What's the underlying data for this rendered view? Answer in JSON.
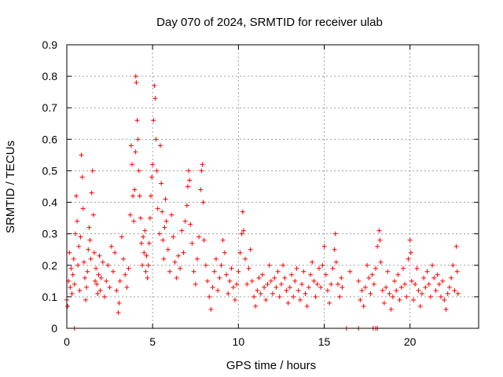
{
  "chart_data": {
    "type": "scatter",
    "title": "Day 070 of 2024, SRMTID for receiver ulab",
    "xlabel": "GPS time / hours",
    "ylabel": "SRMTID / TECUs",
    "xlim": [
      0,
      24
    ],
    "ylim": [
      0,
      0.9
    ],
    "xticks": [
      0,
      5,
      10,
      15,
      20
    ],
    "yticks": [
      0,
      0.1,
      0.2,
      0.3,
      0.4,
      0.5,
      0.6,
      0.7,
      0.8,
      0.9
    ],
    "grid": true,
    "marker": "+",
    "color": "#ff0000",
    "series": [
      {
        "name": "SRMTID",
        "points": [
          [
            0.0,
            0.09
          ],
          [
            0.05,
            0.07
          ],
          [
            0.1,
            0.15
          ],
          [
            0.15,
            0.24
          ],
          [
            0.2,
            0.13
          ],
          [
            0.25,
            0.19
          ],
          [
            0.3,
            0.11
          ],
          [
            0.35,
            0.17
          ],
          [
            0.4,
            0.22
          ],
          [
            0.45,
            0.14
          ],
          [
            0.5,
            0.3
          ],
          [
            0.55,
            0.42
          ],
          [
            0.6,
            0.34
          ],
          [
            0.65,
            0.2
          ],
          [
            0.7,
            0.26
          ],
          [
            0.75,
            0.12
          ],
          [
            0.8,
            0.29
          ],
          [
            0.85,
            0.55
          ],
          [
            0.9,
            0.48
          ],
          [
            0.95,
            0.38
          ],
          [
            1.0,
            0.21
          ],
          [
            1.05,
            0.16
          ],
          [
            1.1,
            0.09
          ],
          [
            1.15,
            0.13
          ],
          [
            1.2,
            0.18
          ],
          [
            1.25,
            0.25
          ],
          [
            1.3,
            0.32
          ],
          [
            1.35,
            0.28
          ],
          [
            1.4,
            0.22
          ],
          [
            1.45,
            0.43
          ],
          [
            1.5,
            0.5
          ],
          [
            1.55,
            0.36
          ],
          [
            1.6,
            0.24
          ],
          [
            1.65,
            0.15
          ],
          [
            1.7,
            0.19
          ],
          [
            1.75,
            0.14
          ],
          [
            1.8,
            0.11
          ],
          [
            1.85,
            0.17
          ],
          [
            1.9,
            0.23
          ],
          [
            1.95,
            0.12
          ],
          [
            2.0,
            0.16
          ],
          [
            2.1,
            0.21
          ],
          [
            2.2,
            0.1
          ],
          [
            2.3,
            0.15
          ],
          [
            2.4,
            0.2
          ],
          [
            2.5,
            0.13
          ],
          [
            2.6,
            0.26
          ],
          [
            2.7,
            0.18
          ],
          [
            2.8,
            0.24
          ],
          [
            2.9,
            0.12
          ],
          [
            3.0,
            0.05
          ],
          [
            3.05,
            0.08
          ],
          [
            3.1,
            0.15
          ],
          [
            3.2,
            0.29
          ],
          [
            3.3,
            0.22
          ],
          [
            3.4,
            0.17
          ],
          [
            3.5,
            0.13
          ],
          [
            3.6,
            0.19
          ],
          [
            3.7,
            0.36
          ],
          [
            3.75,
            0.58
          ],
          [
            3.8,
            0.52
          ],
          [
            3.85,
            0.42
          ],
          [
            3.9,
            0.34
          ],
          [
            3.95,
            0.44
          ],
          [
            4.0,
            0.56
          ],
          [
            4.02,
            0.8
          ],
          [
            4.05,
            0.78
          ],
          [
            4.1,
            0.66
          ],
          [
            4.15,
            0.6
          ],
          [
            4.2,
            0.5
          ],
          [
            4.25,
            0.42
          ],
          [
            4.3,
            0.35
          ],
          [
            4.35,
            0.27
          ],
          [
            4.4,
            0.2
          ],
          [
            4.45,
            0.29
          ],
          [
            4.5,
            0.24
          ],
          [
            4.55,
            0.31
          ],
          [
            4.6,
            0.18
          ],
          [
            4.65,
            0.23
          ],
          [
            4.7,
            0.16
          ],
          [
            4.75,
            0.2
          ],
          [
            4.8,
            0.27
          ],
          [
            4.85,
            0.35
          ],
          [
            4.9,
            0.42
          ],
          [
            4.95,
            0.48
          ],
          [
            5.0,
            0.52
          ],
          [
            5.05,
            0.66
          ],
          [
            5.1,
            0.77
          ],
          [
            5.15,
            0.73
          ],
          [
            5.2,
            0.6
          ],
          [
            5.25,
            0.5
          ],
          [
            5.3,
            0.38
          ],
          [
            5.4,
            0.3
          ],
          [
            5.45,
            0.58
          ],
          [
            5.5,
            0.46
          ],
          [
            5.55,
            0.37
          ],
          [
            5.6,
            0.28
          ],
          [
            5.65,
            0.22
          ],
          [
            5.7,
            0.32
          ],
          [
            5.75,
            0.41
          ],
          [
            5.8,
            0.34
          ],
          [
            5.9,
            0.25
          ],
          [
            6.0,
            0.18
          ],
          [
            6.1,
            0.36
          ],
          [
            6.2,
            0.29
          ],
          [
            6.3,
            0.21
          ],
          [
            6.4,
            0.16
          ],
          [
            6.5,
            0.23
          ],
          [
            6.6,
            0.19
          ],
          [
            6.7,
            0.31
          ],
          [
            6.8,
            0.24
          ],
          [
            6.9,
            0.34
          ],
          [
            7.0,
            0.39
          ],
          [
            7.05,
            0.45
          ],
          [
            7.1,
            0.5
          ],
          [
            7.15,
            0.47
          ],
          [
            7.2,
            0.33
          ],
          [
            7.3,
            0.27
          ],
          [
            7.4,
            0.18
          ],
          [
            7.5,
            0.14
          ],
          [
            7.6,
            0.22
          ],
          [
            7.7,
            0.29
          ],
          [
            7.8,
            0.44
          ],
          [
            7.85,
            0.5
          ],
          [
            7.9,
            0.52
          ],
          [
            7.95,
            0.4
          ],
          [
            8.0,
            0.28
          ],
          [
            8.1,
            0.2
          ],
          [
            8.2,
            0.15
          ],
          [
            8.3,
            0.1
          ],
          [
            8.4,
            0.06
          ],
          [
            8.5,
            0.13
          ],
          [
            8.6,
            0.18
          ],
          [
            8.7,
            0.22
          ],
          [
            8.8,
            0.12
          ],
          [
            8.9,
            0.16
          ],
          [
            9.0,
            0.2
          ],
          [
            9.1,
            0.28
          ],
          [
            9.2,
            0.24
          ],
          [
            9.3,
            0.17
          ],
          [
            9.4,
            0.11
          ],
          [
            9.5,
            0.15
          ],
          [
            9.6,
            0.19
          ],
          [
            9.7,
            0.13
          ],
          [
            9.8,
            0.09
          ],
          [
            9.9,
            0.14
          ],
          [
            10.0,
            0.18
          ],
          [
            10.1,
            0.24
          ],
          [
            10.2,
            0.3
          ],
          [
            10.25,
            0.37
          ],
          [
            10.3,
            0.31
          ],
          [
            10.4,
            0.22
          ],
          [
            10.5,
            0.14
          ],
          [
            10.6,
            0.19
          ],
          [
            10.7,
            0.25
          ],
          [
            10.8,
            0.15
          ],
          [
            10.9,
            0.1
          ],
          [
            11.0,
            0.07
          ],
          [
            11.1,
            0.12
          ],
          [
            11.2,
            0.16
          ],
          [
            11.3,
            0.11
          ],
          [
            11.4,
            0.17
          ],
          [
            11.5,
            0.13
          ],
          [
            11.6,
            0.09
          ],
          [
            11.7,
            0.14
          ],
          [
            11.8,
            0.2
          ],
          [
            11.9,
            0.15
          ],
          [
            12.0,
            0.11
          ],
          [
            12.1,
            0.16
          ],
          [
            12.2,
            0.13
          ],
          [
            12.3,
            0.18
          ],
          [
            12.4,
            0.1
          ],
          [
            12.5,
            0.14
          ],
          [
            12.6,
            0.2
          ],
          [
            12.7,
            0.16
          ],
          [
            12.8,
            0.12
          ],
          [
            12.9,
            0.08
          ],
          [
            13.0,
            0.13
          ],
          [
            13.1,
            0.17
          ],
          [
            13.2,
            0.1
          ],
          [
            13.3,
            0.15
          ],
          [
            13.4,
            0.19
          ],
          [
            13.5,
            0.12
          ],
          [
            13.6,
            0.09
          ],
          [
            13.7,
            0.14
          ],
          [
            13.8,
            0.18
          ],
          [
            13.9,
            0.11
          ],
          [
            14.0,
            0.07
          ],
          [
            14.1,
            0.13
          ],
          [
            14.2,
            0.17
          ],
          [
            14.3,
            0.21
          ],
          [
            14.4,
            0.15
          ],
          [
            14.5,
            0.1
          ],
          [
            14.6,
            0.14
          ],
          [
            14.7,
            0.19
          ],
          [
            14.8,
            0.13
          ],
          [
            14.9,
            0.2
          ],
          [
            15.0,
            0.26
          ],
          [
            15.1,
            0.17
          ],
          [
            15.2,
            0.12
          ],
          [
            15.3,
            0.08
          ],
          [
            15.4,
            0.14
          ],
          [
            15.5,
            0.19
          ],
          [
            15.6,
            0.25
          ],
          [
            15.65,
            0.3
          ],
          [
            15.7,
            0.21
          ],
          [
            15.8,
            0.14
          ],
          [
            15.9,
            0.1
          ],
          [
            16.0,
            0.16
          ],
          [
            16.05,
            0.13
          ],
          [
            16.5,
            0.18
          ],
          [
            17.0,
            0.15
          ],
          [
            17.1,
            0.09
          ],
          [
            17.2,
            0.12
          ],
          [
            17.3,
            0.07
          ],
          [
            17.4,
            0.13
          ],
          [
            17.5,
            0.2
          ],
          [
            17.6,
            0.16
          ],
          [
            17.7,
            0.11
          ],
          [
            17.8,
            0.17
          ],
          [
            17.9,
            0.14
          ],
          [
            18.0,
            0.19
          ],
          [
            18.1,
            0.26
          ],
          [
            18.2,
            0.31
          ],
          [
            18.25,
            0.28
          ],
          [
            18.3,
            0.21
          ],
          [
            18.4,
            0.12
          ],
          [
            18.5,
            0.08
          ],
          [
            18.6,
            0.13
          ],
          [
            18.7,
            0.18
          ],
          [
            18.8,
            0.11
          ],
          [
            18.9,
            0.06
          ],
          [
            19.0,
            0.1
          ],
          [
            19.1,
            0.15
          ],
          [
            19.2,
            0.12
          ],
          [
            19.3,
            0.17
          ],
          [
            19.4,
            0.09
          ],
          [
            19.5,
            0.13
          ],
          [
            19.6,
            0.19
          ],
          [
            19.7,
            0.14
          ],
          [
            19.8,
            0.1
          ],
          [
            19.9,
            0.22
          ],
          [
            20.0,
            0.28
          ],
          [
            20.05,
            0.24
          ],
          [
            20.1,
            0.15
          ],
          [
            20.2,
            0.09
          ],
          [
            20.3,
            0.14
          ],
          [
            20.4,
            0.19
          ],
          [
            20.5,
            0.12
          ],
          [
            20.6,
            0.07
          ],
          [
            20.7,
            0.11
          ],
          [
            20.8,
            0.16
          ],
          [
            20.9,
            0.13
          ],
          [
            21.0,
            0.18
          ],
          [
            21.1,
            0.14
          ],
          [
            21.2,
            0.1
          ],
          [
            21.3,
            0.2
          ],
          [
            21.4,
            0.16
          ],
          [
            21.5,
            0.12
          ],
          [
            21.6,
            0.17
          ],
          [
            21.7,
            0.14
          ],
          [
            21.8,
            0.1
          ],
          [
            21.9,
            0.15
          ],
          [
            22.0,
            0.09
          ],
          [
            22.1,
            0.06
          ],
          [
            22.2,
            0.11
          ],
          [
            22.3,
            0.13
          ],
          [
            22.4,
            0.16
          ],
          [
            22.5,
            0.2
          ],
          [
            22.6,
            0.12
          ],
          [
            22.7,
            0.26
          ],
          [
            22.75,
            0.18
          ],
          [
            22.8,
            0.11
          ],
          [
            0.45,
            0.0
          ],
          [
            16.3,
            0.0
          ],
          [
            17.0,
            0.0
          ],
          [
            17.85,
            0.0
          ],
          [
            18.0,
            0.0
          ],
          [
            18.1,
            0.0
          ]
        ]
      }
    ]
  }
}
